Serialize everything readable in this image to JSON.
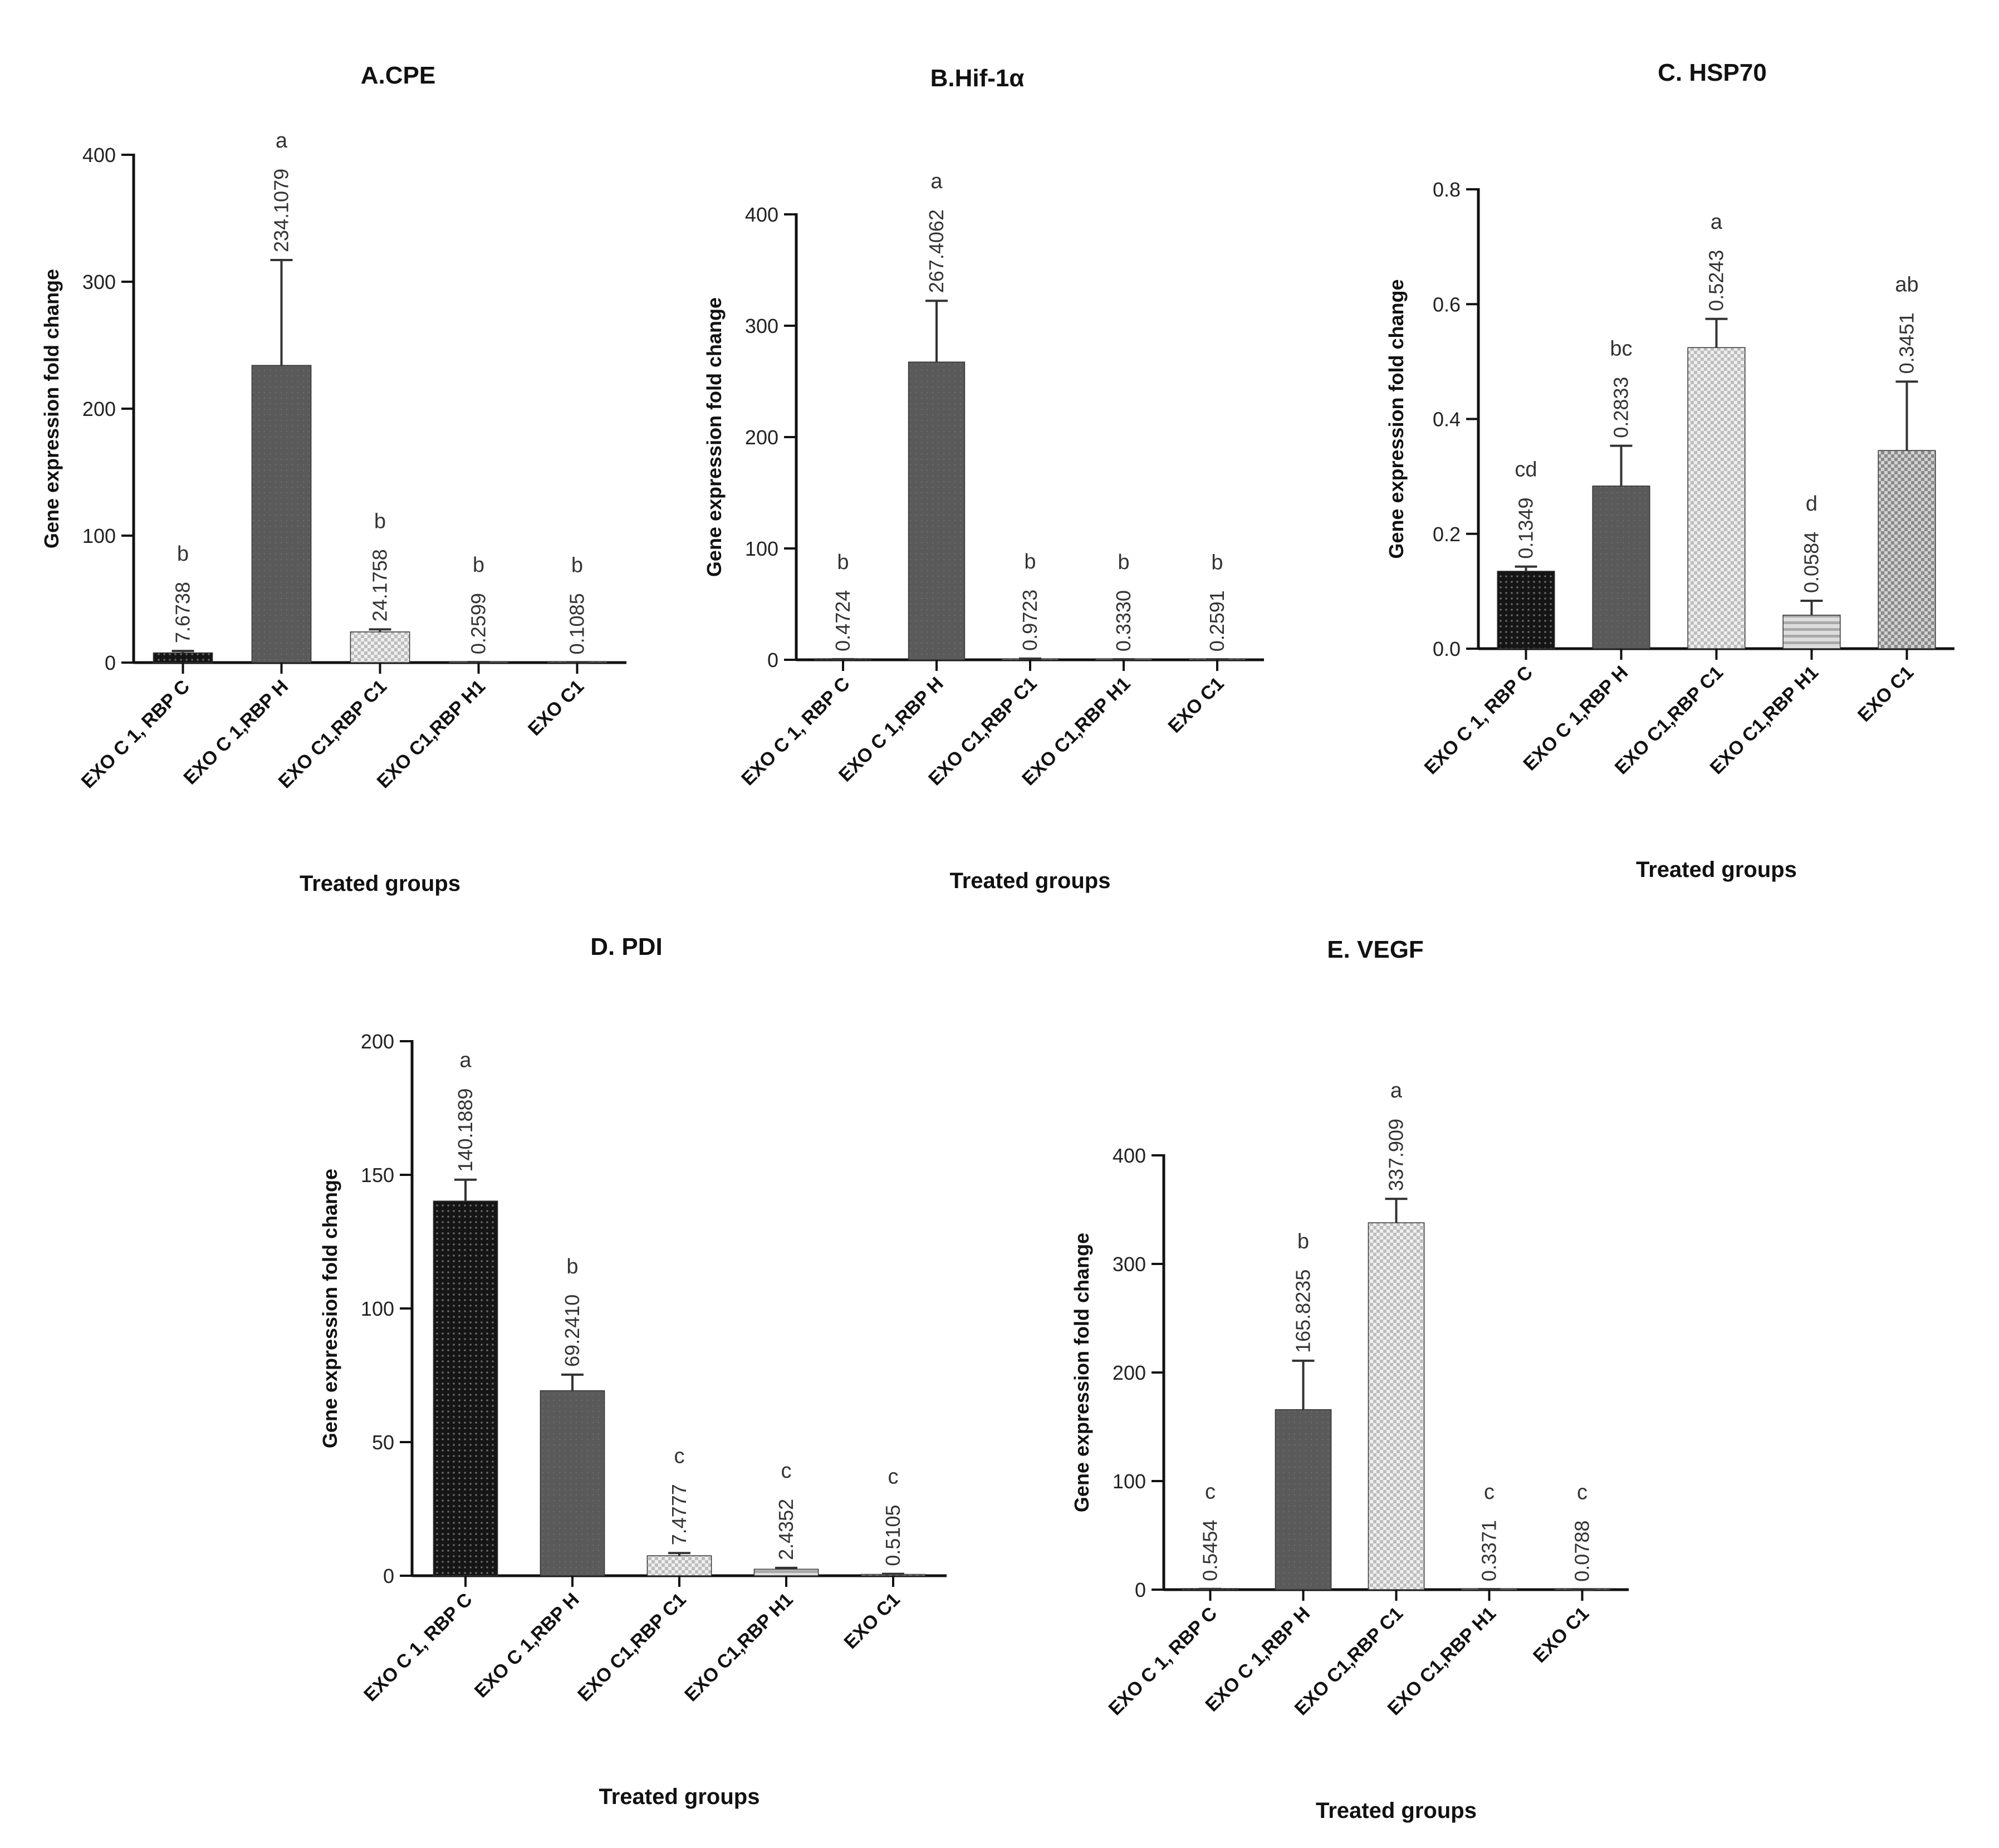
{
  "chart_data": [
    {
      "type": "bar",
      "title": "A.CPE",
      "xlabel": "Treated groups",
      "ylabel": "Gene expression fold change",
      "ylim": [
        0,
        400
      ],
      "yticks": [
        "0",
        "100",
        "200",
        "300",
        "400"
      ],
      "categories": [
        "EXO C 1, RBP C",
        "EXO C 1,RBP H",
        "EXO C1,RBP C1",
        "EXO C1,RBP H1",
        "EXO C1"
      ],
      "values": [
        7.6738,
        234.1079,
        24.1758,
        0.2599,
        0.1085
      ],
      "errors": [
        1.5,
        83,
        2,
        0.1,
        0.1
      ],
      "value_labels": [
        "7.6738",
        "234.1079",
        "24.1758",
        "0.2599",
        "0.1085"
      ],
      "letters": [
        "b",
        "a",
        "b",
        "b",
        "b"
      ],
      "patterns": [
        "dots-dark",
        "solid-dark",
        "checker-light",
        "stripes-light",
        "checker-dark"
      ]
    },
    {
      "type": "bar",
      "title": "B.Hif-1α",
      "xlabel": "Treated groups",
      "ylabel": "Gene expression fold change",
      "ylim": [
        0,
        400
      ],
      "yticks": [
        "0",
        "100",
        "200",
        "300",
        "400"
      ],
      "categories": [
        "EXO C 1, RBP C",
        "EXO C 1,RBP H",
        "EXO C1,RBP C1",
        "EXO C1,RBP H1",
        "EXO C1"
      ],
      "values": [
        0.4724,
        267.4062,
        0.9723,
        0.333,
        0.2591
      ],
      "errors": [
        0.1,
        55,
        0.1,
        0.1,
        0.1
      ],
      "value_labels": [
        "0.4724",
        "267.4062",
        "0.9723",
        "0.3330",
        "0.2591"
      ],
      "letters": [
        "b",
        "a",
        "b",
        "b",
        "b"
      ],
      "patterns": [
        "dots-dark",
        "solid-dark",
        "checker-light",
        "stripes-light",
        "checker-dark"
      ]
    },
    {
      "type": "bar",
      "title": "C. HSP70",
      "xlabel": "Treated groups",
      "ylabel": "Gene expression fold change",
      "ylim": [
        0,
        0.8
      ],
      "yticks": [
        "0.0",
        "0.2",
        "0.4",
        "0.6",
        "0.8"
      ],
      "categories": [
        "EXO C 1, RBP C",
        "EXO C 1,RBP H",
        "EXO C1,RBP C1",
        "EXO C1,RBP H1",
        "EXO C1"
      ],
      "values": [
        0.1349,
        0.2833,
        0.5243,
        0.0584,
        0.3451
      ],
      "errors": [
        0.008,
        0.07,
        0.05,
        0.025,
        0.12
      ],
      "value_labels": [
        "0.1349",
        "0.2833",
        "0.5243",
        "0.0584",
        "0.3451"
      ],
      "letters": [
        "cd",
        "bc",
        "a",
        "d",
        "ab"
      ],
      "patterns": [
        "dots-dark",
        "solid-dark",
        "checker-light",
        "stripes-light",
        "checker-dark"
      ]
    },
    {
      "type": "bar",
      "title": "D. PDI",
      "xlabel": "Treated groups",
      "ylabel": "Gene expression fold change",
      "ylim": [
        0,
        200
      ],
      "yticks": [
        "0",
        "50",
        "100",
        "150",
        "200"
      ],
      "categories": [
        "EXO C 1, RBP C",
        "EXO C 1,RBP H",
        "EXO C1,RBP C1",
        "EXO C1,RBP H1",
        "EXO C1"
      ],
      "values": [
        140.1889,
        69.241,
        7.4777,
        2.4352,
        0.5105
      ],
      "errors": [
        8,
        6,
        1,
        0.5,
        0.2
      ],
      "value_labels": [
        "140.1889",
        "69.2410",
        "7.4777",
        "2.4352",
        "0.5105"
      ],
      "letters": [
        "a",
        "b",
        "c",
        "c",
        "c"
      ],
      "patterns": [
        "dots-dark",
        "solid-dark",
        "checker-light",
        "stripes-light",
        "checker-dark"
      ]
    },
    {
      "type": "bar",
      "title": "E. VEGF",
      "xlabel": "Treated groups",
      "ylabel": "Gene expression fold change",
      "ylim": [
        0,
        400
      ],
      "yticks": [
        "0",
        "100",
        "200",
        "300",
        "400"
      ],
      "categories": [
        "EXO C 1, RBP C",
        "EXO C 1,RBP H",
        "EXO C1,RBP C1",
        "EXO C1,RBP H1",
        "EXO C1"
      ],
      "values": [
        0.5454,
        165.8235,
        337.909,
        0.3371,
        0.0788
      ],
      "errors": [
        0.1,
        45,
        22,
        0.1,
        0.05
      ],
      "value_labels": [
        "0.5454",
        "165.8235",
        "337.909",
        "0.3371",
        "0.0788"
      ],
      "letters": [
        "c",
        "b",
        "a",
        "c",
        "c"
      ],
      "patterns": [
        "dots-dark",
        "solid-dark",
        "checker-light",
        "stripes-light",
        "checker-dark"
      ]
    }
  ]
}
